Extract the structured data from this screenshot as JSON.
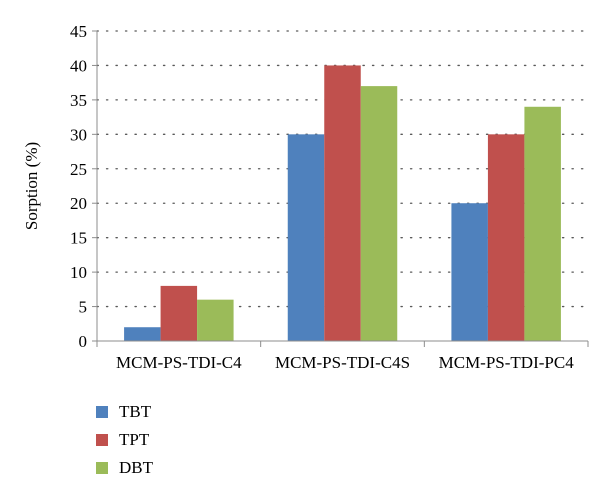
{
  "chart_data": {
    "type": "bar",
    "title": "",
    "xlabel": "",
    "ylabel": "Sorption (%)",
    "ylim": [
      0,
      45
    ],
    "yticks": [
      0,
      5,
      10,
      15,
      20,
      25,
      30,
      35,
      40,
      45
    ],
    "grid": "horizontal dotted",
    "legend_position": "bottom-left",
    "categories": [
      "MCM-PS-TDI-C4",
      "MCM-PS-TDI-C4S",
      "MCM-PS-TDI-PC4"
    ],
    "series": [
      {
        "name": "TBT",
        "color": "#4f81bd",
        "values": [
          2,
          30,
          20
        ]
      },
      {
        "name": "TPT",
        "color": "#c0504d",
        "values": [
          8,
          40,
          30
        ]
      },
      {
        "name": "DBT",
        "color": "#9bbb59",
        "values": [
          6,
          37,
          34
        ]
      }
    ]
  }
}
